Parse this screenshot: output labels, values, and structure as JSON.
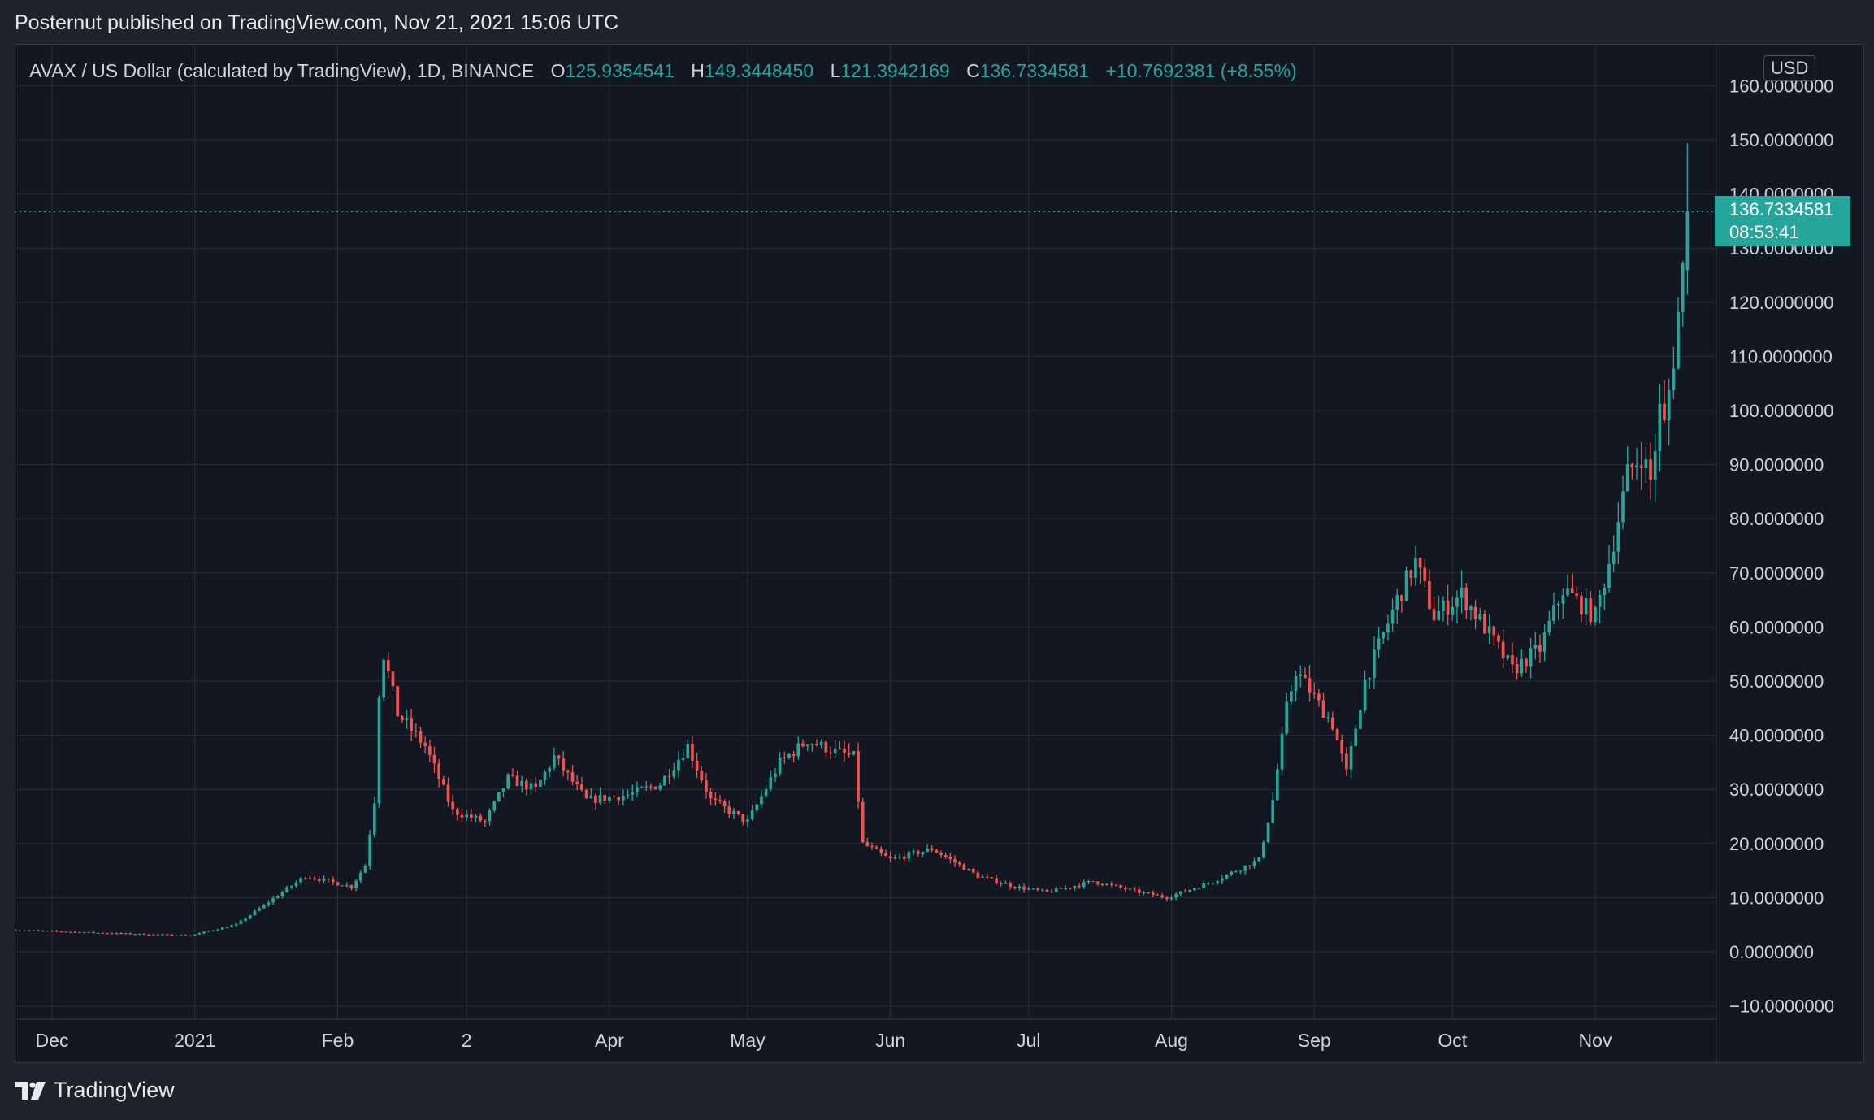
{
  "header": {
    "publish_text": "Posternut published on TradingView.com, Nov 21, 2021 15:06 UTC"
  },
  "legend": {
    "symbol": "AVAX / US Dollar (calculated by TradingView), 1D, BINANCE",
    "open_label": "O",
    "open": "125.9354541",
    "high_label": "H",
    "high": "149.3448450",
    "low_label": "L",
    "low": "121.3942169",
    "close_label": "C",
    "close": "136.7334581",
    "change": "+10.7692381 (+8.55%)"
  },
  "currency": "USD",
  "last_price": {
    "price": "136.7334581",
    "countdown": "08:53:41"
  },
  "footer": {
    "brand": "TradingView",
    "logo_icon": "tradingview-logo-icon"
  },
  "colors": {
    "up": "#26a69a",
    "down": "#ef5350",
    "background": "#131722",
    "grid": "#2a2e39",
    "text": "#d1d4dc"
  },
  "chart_data": {
    "type": "candlestick",
    "ylim": [
      -10,
      160
    ],
    "y_ticks": [
      "−10.0000000",
      "0.0000000",
      "10.0000000",
      "20.0000000",
      "30.0000000",
      "40.0000000",
      "50.0000000",
      "60.0000000",
      "70.0000000",
      "80.0000000",
      "90.0000000",
      "100.0000000",
      "110.0000000",
      "120.0000000",
      "130.0000000",
      "140.0000000",
      "150.0000000",
      "160.0000000"
    ],
    "y_tick_values": [
      -10,
      0,
      10,
      20,
      30,
      40,
      50,
      60,
      70,
      80,
      90,
      100,
      110,
      120,
      130,
      140,
      150,
      160
    ],
    "x_ticks": [
      {
        "label": "Dec",
        "date": "2020-12-01"
      },
      {
        "label": "2021",
        "date": "2021-01-01"
      },
      {
        "label": "Feb",
        "date": "2021-02-01"
      },
      {
        "label": "2",
        "date": "2021-03-01"
      },
      {
        "label": "Apr",
        "date": "2021-04-01"
      },
      {
        "label": "May",
        "date": "2021-05-01"
      },
      {
        "label": "Jun",
        "date": "2021-06-01"
      },
      {
        "label": "Jul",
        "date": "2021-07-01"
      },
      {
        "label": "Aug",
        "date": "2021-08-01"
      },
      {
        "label": "Sep",
        "date": "2021-09-01"
      },
      {
        "label": "Oct",
        "date": "2021-10-01"
      },
      {
        "label": "Nov",
        "date": "2021-11-01"
      }
    ],
    "first_date": "2020-11-23",
    "last_date": "2021-11-21",
    "last_close": 136.7334581,
    "close_anchors": [
      [
        "2020-11-23",
        4.0
      ],
      [
        "2020-12-10",
        3.5
      ],
      [
        "2020-12-31",
        3.0
      ],
      [
        "2021-01-10",
        5.0
      ],
      [
        "2021-01-20",
        11.0
      ],
      [
        "2021-01-25",
        14.0
      ],
      [
        "2021-02-04",
        12.0
      ],
      [
        "2021-02-07",
        16.0
      ],
      [
        "2021-02-09",
        28.0
      ],
      [
        "2021-02-10",
        48.0
      ],
      [
        "2021-02-11",
        55.0
      ],
      [
        "2021-02-14",
        44.0
      ],
      [
        "2021-02-20",
        38.0
      ],
      [
        "2021-02-26",
        26.0
      ],
      [
        "2021-03-05",
        24.0
      ],
      [
        "2021-03-10",
        32.0
      ],
      [
        "2021-03-16",
        30.0
      ],
      [
        "2021-03-20",
        36.0
      ],
      [
        "2021-03-27",
        28.0
      ],
      [
        "2021-04-05",
        29.0
      ],
      [
        "2021-04-12",
        31.0
      ],
      [
        "2021-04-18",
        38.0
      ],
      [
        "2021-04-23",
        28.0
      ],
      [
        "2021-05-01",
        24.0
      ],
      [
        "2021-05-08",
        35.0
      ],
      [
        "2021-05-14",
        39.0
      ],
      [
        "2021-05-20",
        37.0
      ],
      [
        "2021-05-24",
        36.0
      ],
      [
        "2021-05-26",
        20.0
      ],
      [
        "2021-06-01",
        17.0
      ],
      [
        "2021-06-10",
        19.0
      ],
      [
        "2021-06-20",
        14.0
      ],
      [
        "2021-06-28",
        12.0
      ],
      [
        "2021-07-05",
        11.0
      ],
      [
        "2021-07-15",
        13.0
      ],
      [
        "2021-07-25",
        11.0
      ],
      [
        "2021-07-31",
        10.0
      ],
      [
        "2021-08-10",
        13.0
      ],
      [
        "2021-08-20",
        17.0
      ],
      [
        "2021-08-23",
        28.0
      ],
      [
        "2021-08-26",
        45.0
      ],
      [
        "2021-08-28",
        52.0
      ],
      [
        "2021-09-05",
        42.0
      ],
      [
        "2021-09-08",
        33.0
      ],
      [
        "2021-09-12",
        50.0
      ],
      [
        "2021-09-19",
        65.0
      ],
      [
        "2021-09-23",
        72.0
      ],
      [
        "2021-09-27",
        62.0
      ],
      [
        "2021-10-03",
        66.0
      ],
      [
        "2021-10-08",
        60.0
      ],
      [
        "2021-10-14",
        52.0
      ],
      [
        "2021-10-20",
        56.0
      ],
      [
        "2021-10-25",
        67.0
      ],
      [
        "2021-11-01",
        62.0
      ],
      [
        "2021-11-04",
        72.0
      ],
      [
        "2021-11-08",
        88.0
      ],
      [
        "2021-11-11",
        92.0
      ],
      [
        "2021-11-13",
        87.0
      ],
      [
        "2021-11-15",
        100.0
      ],
      [
        "2021-11-16",
        97.0
      ],
      [
        "2021-11-18",
        110.0
      ],
      [
        "2021-11-19",
        118.0
      ],
      [
        "2021-11-20",
        126.0
      ],
      [
        "2021-11-21",
        136.73
      ]
    ]
  }
}
